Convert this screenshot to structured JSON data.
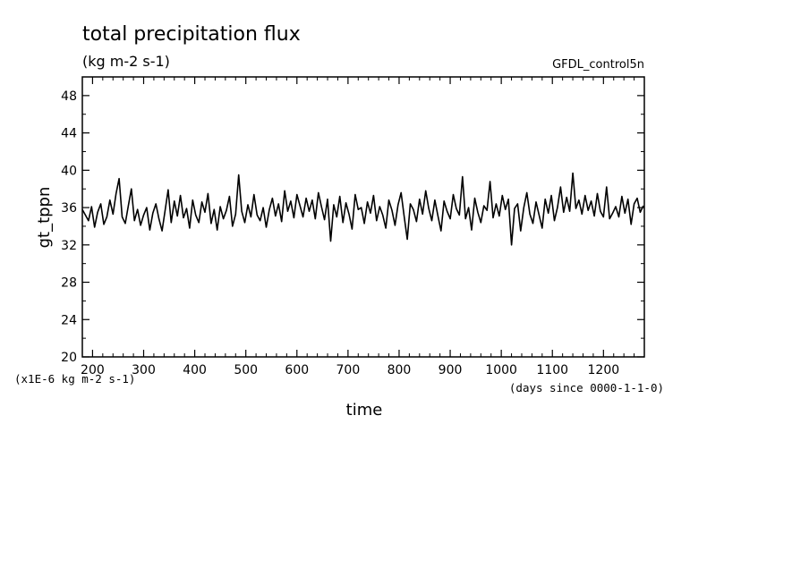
{
  "chart_data": {
    "type": "line",
    "title": "total precipitation flux",
    "subtitle": "(kg m-2 s-1)",
    "dataset_label": "GFDL_control5n",
    "xlabel": "time",
    "x_units_note": "(days since 0000-1-1-0)",
    "ylabel": "gt_tppn",
    "y_units_note": "(x1E-6 kg m-2 s-1)",
    "xlim": [
      180,
      1280
    ],
    "ylim": [
      20,
      50
    ],
    "x_ticks": [
      200,
      300,
      400,
      500,
      600,
      700,
      800,
      900,
      1000,
      1100,
      1200
    ],
    "x_tick_labels": [
      "200",
      "300",
      "400",
      "500",
      "600",
      "700",
      "800",
      "900",
      "1000",
      "1100",
      "1200"
    ],
    "y_ticks": [
      20,
      24,
      28,
      32,
      36,
      40,
      44,
      48
    ],
    "y_tick_labels": [
      "20",
      "24",
      "28",
      "32",
      "36",
      "40",
      "44",
      "48"
    ],
    "grid": false,
    "color": "#000000",
    "series": [
      {
        "x": [
          180,
          186,
          192,
          198,
          204,
          210,
          216,
          222,
          228,
          234,
          240,
          246,
          252,
          258,
          264,
          270,
          276,
          282,
          288,
          294,
          300,
          306,
          312,
          318,
          324,
          330,
          336,
          342,
          348,
          354,
          360,
          366,
          372,
          378,
          384,
          390,
          396,
          402,
          408,
          414,
          420,
          426,
          432,
          438,
          444,
          450,
          456,
          462,
          468,
          474,
          480,
          486,
          492,
          498,
          504,
          510,
          516,
          522,
          528,
          534,
          540,
          546,
          552,
          558,
          564,
          570,
          576,
          582,
          588,
          594,
          600,
          606,
          612,
          618,
          624,
          630,
          636,
          642,
          648,
          654,
          660,
          666,
          672,
          678,
          684,
          690,
          696,
          702,
          708,
          714,
          720,
          726,
          732,
          738,
          744,
          750,
          756,
          762,
          768,
          774,
          780,
          786,
          792,
          798,
          804,
          810,
          816,
          822,
          828,
          834,
          840,
          846,
          852,
          858,
          864,
          870,
          876,
          882,
          888,
          894,
          900,
          906,
          912,
          918,
          924,
          930,
          936,
          942,
          948,
          954,
          960,
          966,
          972,
          978,
          984,
          990,
          996,
          1002,
          1008,
          1014,
          1020,
          1026,
          1032,
          1038,
          1044,
          1050,
          1056,
          1062,
          1068,
          1074,
          1080,
          1086,
          1092,
          1098,
          1104,
          1110,
          1116,
          1122,
          1128,
          1134,
          1140,
          1146,
          1152,
          1158,
          1164,
          1170,
          1176,
          1182,
          1188,
          1194,
          1200,
          1206,
          1212,
          1218,
          1224,
          1230,
          1236,
          1242,
          1248,
          1254,
          1260,
          1266,
          1272,
          1278
        ],
        "values": [
          35.8,
          35.2,
          34.6,
          36.1,
          33.9,
          35.5,
          36.4,
          34.2,
          35.0,
          36.8,
          35.3,
          37.5,
          39.1,
          35.0,
          34.3,
          36.2,
          38.0,
          34.6,
          35.8,
          34.1,
          35.2,
          36.0,
          33.6,
          35.4,
          36.4,
          34.8,
          33.5,
          35.7,
          37.9,
          34.4,
          36.7,
          35.1,
          37.3,
          34.9,
          35.9,
          33.8,
          36.8,
          35.2,
          34.4,
          36.6,
          35.5,
          37.5,
          34.3,
          35.8,
          33.6,
          36.1,
          34.8,
          35.7,
          37.2,
          34.0,
          35.3,
          39.5,
          35.6,
          34.4,
          36.3,
          35.0,
          37.4,
          35.2,
          34.6,
          36.0,
          33.9,
          35.8,
          37.0,
          35.1,
          36.4,
          34.5,
          37.8,
          35.6,
          36.7,
          34.9,
          37.4,
          36.2,
          35.0,
          37.0,
          35.6,
          36.8,
          34.8,
          37.6,
          36.1,
          34.7,
          36.9,
          32.4,
          36.3,
          35.0,
          37.2,
          34.4,
          36.5,
          35.3,
          33.7,
          37.4,
          35.8,
          36.0,
          34.3,
          36.6,
          35.4,
          37.3,
          34.6,
          36.1,
          35.2,
          33.8,
          36.8,
          35.7,
          34.1,
          36.3,
          37.6,
          35.0,
          32.6,
          36.4,
          35.8,
          34.5,
          36.9,
          35.3,
          37.8,
          35.9,
          34.6,
          36.8,
          35.1,
          33.5,
          36.7,
          35.6,
          34.8,
          37.4,
          35.9,
          35.2,
          39.3,
          34.8,
          36.0,
          33.6,
          37.0,
          35.5,
          34.4,
          36.2,
          35.7,
          38.8,
          34.9,
          36.4,
          35.1,
          37.3,
          35.8,
          36.9,
          32.0,
          35.9,
          36.4,
          33.5,
          36.0,
          37.6,
          35.3,
          34.3,
          36.6,
          35.2,
          33.8,
          36.9,
          35.4,
          37.3,
          34.6,
          36.0,
          38.2,
          35.5,
          37.1,
          35.6,
          39.7,
          35.9,
          36.8,
          35.3,
          37.3,
          35.7,
          36.7,
          35.1,
          37.5,
          35.6,
          35.0,
          38.2,
          34.8,
          35.4,
          36.1,
          35.0,
          37.2,
          35.4,
          36.9,
          34.2,
          36.4,
          37.0,
          35.5,
          36.2
        ]
      }
    ]
  }
}
